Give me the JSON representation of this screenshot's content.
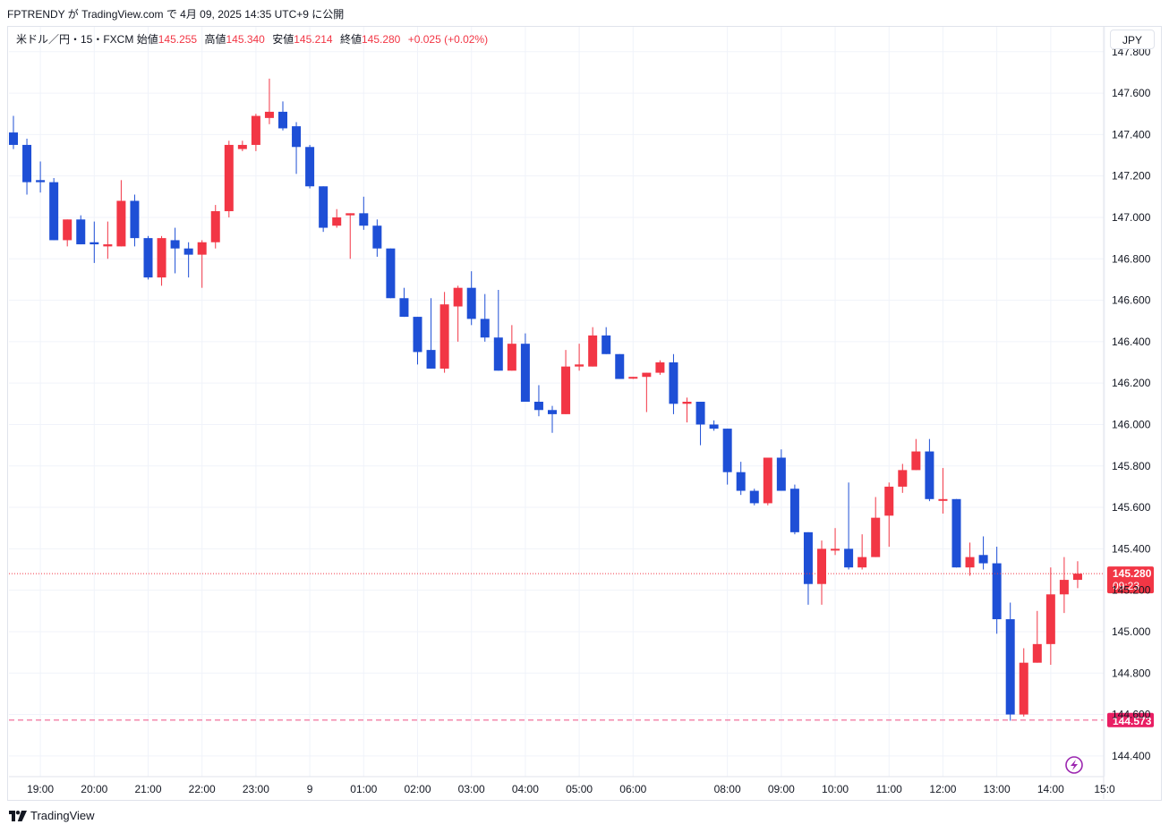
{
  "caption": "FPTRENDY が TradingView.com で 4月 09, 2025 14:35 UTC+9 に公開",
  "legend": {
    "symbol": "米ドル／円・15・FXCM",
    "open_label": "始値",
    "open": "145.255",
    "high_label": "高値",
    "high": "145.340",
    "low_label": "安値",
    "low": "145.214",
    "close_label": "終値",
    "close": "145.280",
    "change": "+0.025 (+0.02%)"
  },
  "currency_button": "JPY",
  "price_tag": {
    "price": "145.280",
    "countdown": "09:23"
  },
  "low_tag": "144.573",
  "footer_brand": "TradingView",
  "colors": {
    "up": "#f23645",
    "down": "#1e4fd6",
    "grid": "#f0f3fa",
    "axis_text": "#131722",
    "alert": "#9c27b0"
  },
  "chart_data": {
    "type": "candlestick",
    "title": "",
    "interval": "15",
    "ylim": [
      144.3,
      147.92
    ],
    "y_ticks": [
      "147.800",
      "147.600",
      "147.400",
      "147.200",
      "147.000",
      "146.800",
      "146.600",
      "146.400",
      "146.200",
      "146.000",
      "145.800",
      "145.600",
      "145.400",
      "145.200",
      "145.000",
      "144.800",
      "144.600",
      "144.400"
    ],
    "x_ticks": [
      {
        "label": "19:00",
        "i": 2
      },
      {
        "label": "20:00",
        "i": 6
      },
      {
        "label": "21:00",
        "i": 10
      },
      {
        "label": "22:00",
        "i": 14
      },
      {
        "label": "23:00",
        "i": 18
      },
      {
        "label": "9",
        "i": 22
      },
      {
        "label": "01:00",
        "i": 26
      },
      {
        "label": "02:00",
        "i": 30
      },
      {
        "label": "03:00",
        "i": 34
      },
      {
        "label": "04:00",
        "i": 38
      },
      {
        "label": "05:00",
        "i": 42
      },
      {
        "label": "06:00",
        "i": 46
      },
      {
        "label": "08:00",
        "i": 53
      },
      {
        "label": "09:00",
        "i": 57
      },
      {
        "label": "10:00",
        "i": 61
      },
      {
        "label": "11:00",
        "i": 65
      },
      {
        "label": "12:00",
        "i": 69
      },
      {
        "label": "13:00",
        "i": 73
      },
      {
        "label": "14:00",
        "i": 77
      },
      {
        "label": "15:0",
        "i": 81
      }
    ],
    "current_price": 145.28,
    "low_line": 144.573,
    "candles": [
      {
        "o": 147.41,
        "h": 147.49,
        "l": 147.33,
        "c": 147.35
      },
      {
        "o": 147.35,
        "h": 147.38,
        "l": 147.11,
        "c": 147.17
      },
      {
        "o": 147.18,
        "h": 147.27,
        "l": 147.12,
        "c": 147.17
      },
      {
        "o": 147.17,
        "h": 147.19,
        "l": 146.89,
        "c": 146.89
      },
      {
        "o": 146.89,
        "h": 146.99,
        "l": 146.86,
        "c": 146.99
      },
      {
        "o": 146.99,
        "h": 147.01,
        "l": 146.87,
        "c": 146.87
      },
      {
        "o": 146.88,
        "h": 146.98,
        "l": 146.78,
        "c": 146.87
      },
      {
        "o": 146.86,
        "h": 146.98,
        "l": 146.8,
        "c": 146.87
      },
      {
        "o": 146.86,
        "h": 147.18,
        "l": 146.86,
        "c": 147.08
      },
      {
        "o": 147.08,
        "h": 147.11,
        "l": 146.86,
        "c": 146.9
      },
      {
        "o": 146.9,
        "h": 146.91,
        "l": 146.7,
        "c": 146.71
      },
      {
        "o": 146.71,
        "h": 146.91,
        "l": 146.67,
        "c": 146.9
      },
      {
        "o": 146.89,
        "h": 146.95,
        "l": 146.73,
        "c": 146.85
      },
      {
        "o": 146.85,
        "h": 146.88,
        "l": 146.71,
        "c": 146.82
      },
      {
        "o": 146.82,
        "h": 146.89,
        "l": 146.66,
        "c": 146.88
      },
      {
        "o": 146.88,
        "h": 147.06,
        "l": 146.85,
        "c": 147.03
      },
      {
        "o": 147.03,
        "h": 147.37,
        "l": 147.0,
        "c": 147.35
      },
      {
        "o": 147.33,
        "h": 147.37,
        "l": 147.32,
        "c": 147.35
      },
      {
        "o": 147.35,
        "h": 147.5,
        "l": 147.32,
        "c": 147.49
      },
      {
        "o": 147.48,
        "h": 147.67,
        "l": 147.45,
        "c": 147.51
      },
      {
        "o": 147.51,
        "h": 147.56,
        "l": 147.42,
        "c": 147.43
      },
      {
        "o": 147.44,
        "h": 147.46,
        "l": 147.21,
        "c": 147.34
      },
      {
        "o": 147.34,
        "h": 147.35,
        "l": 147.14,
        "c": 147.15
      },
      {
        "o": 147.15,
        "h": 147.15,
        "l": 146.93,
        "c": 146.95
      },
      {
        "o": 146.96,
        "h": 147.04,
        "l": 146.95,
        "c": 147.0
      },
      {
        "o": 147.01,
        "h": 147.02,
        "l": 146.8,
        "c": 147.02
      },
      {
        "o": 147.02,
        "h": 147.1,
        "l": 146.94,
        "c": 146.96
      },
      {
        "o": 146.96,
        "h": 146.99,
        "l": 146.81,
        "c": 146.85
      },
      {
        "o": 146.85,
        "h": 146.85,
        "l": 146.61,
        "c": 146.61
      },
      {
        "o": 146.61,
        "h": 146.66,
        "l": 146.52,
        "c": 146.52
      },
      {
        "o": 146.52,
        "h": 146.52,
        "l": 146.29,
        "c": 146.35
      },
      {
        "o": 146.36,
        "h": 146.61,
        "l": 146.27,
        "c": 146.27
      },
      {
        "o": 146.27,
        "h": 146.64,
        "l": 146.25,
        "c": 146.58
      },
      {
        "o": 146.57,
        "h": 146.67,
        "l": 146.4,
        "c": 146.66
      },
      {
        "o": 146.66,
        "h": 146.74,
        "l": 146.48,
        "c": 146.51
      },
      {
        "o": 146.51,
        "h": 146.63,
        "l": 146.4,
        "c": 146.42
      },
      {
        "o": 146.42,
        "h": 146.65,
        "l": 146.26,
        "c": 146.26
      },
      {
        "o": 146.26,
        "h": 146.48,
        "l": 146.26,
        "c": 146.39
      },
      {
        "o": 146.39,
        "h": 146.44,
        "l": 146.11,
        "c": 146.11
      },
      {
        "o": 146.11,
        "h": 146.19,
        "l": 146.04,
        "c": 146.07
      },
      {
        "o": 146.07,
        "h": 146.09,
        "l": 145.96,
        "c": 146.05
      },
      {
        "o": 146.05,
        "h": 146.36,
        "l": 146.05,
        "c": 146.28
      },
      {
        "o": 146.28,
        "h": 146.39,
        "l": 146.26,
        "c": 146.29
      },
      {
        "o": 146.28,
        "h": 146.47,
        "l": 146.28,
        "c": 146.43
      },
      {
        "o": 146.43,
        "h": 146.47,
        "l": 146.34,
        "c": 146.34
      },
      {
        "o": 146.34,
        "h": 146.34,
        "l": 146.22,
        "c": 146.22
      },
      {
        "o": 146.23,
        "h": 146.23,
        "l": 146.22,
        "c": 146.23
      },
      {
        "o": 146.23,
        "h": 146.25,
        "l": 146.06,
        "c": 146.25
      },
      {
        "o": 146.25,
        "h": 146.31,
        "l": 146.24,
        "c": 146.3
      },
      {
        "o": 146.3,
        "h": 146.34,
        "l": 146.05,
        "c": 146.1
      },
      {
        "o": 146.1,
        "h": 146.13,
        "l": 146.01,
        "c": 146.11
      },
      {
        "o": 146.11,
        "h": 146.11,
        "l": 145.9,
        "c": 146.0
      },
      {
        "o": 146.0,
        "h": 146.02,
        "l": 145.97,
        "c": 145.98
      },
      {
        "o": 145.98,
        "h": 145.98,
        "l": 145.71,
        "c": 145.77
      },
      {
        "o": 145.77,
        "h": 145.82,
        "l": 145.66,
        "c": 145.68
      },
      {
        "o": 145.68,
        "h": 145.69,
        "l": 145.61,
        "c": 145.62
      },
      {
        "o": 145.62,
        "h": 145.84,
        "l": 145.61,
        "c": 145.84
      },
      {
        "o": 145.84,
        "h": 145.88,
        "l": 145.68,
        "c": 145.68
      },
      {
        "o": 145.69,
        "h": 145.71,
        "l": 145.47,
        "c": 145.48
      },
      {
        "o": 145.48,
        "h": 145.48,
        "l": 145.13,
        "c": 145.23
      },
      {
        "o": 145.23,
        "h": 145.44,
        "l": 145.13,
        "c": 145.4
      },
      {
        "o": 145.4,
        "h": 145.5,
        "l": 145.37,
        "c": 145.4
      },
      {
        "o": 145.4,
        "h": 145.72,
        "l": 145.3,
        "c": 145.31
      },
      {
        "o": 145.31,
        "h": 145.47,
        "l": 145.3,
        "c": 145.36
      },
      {
        "o": 145.36,
        "h": 145.65,
        "l": 145.36,
        "c": 145.55
      },
      {
        "o": 145.56,
        "h": 145.72,
        "l": 145.41,
        "c": 145.7
      },
      {
        "o": 145.7,
        "h": 145.81,
        "l": 145.67,
        "c": 145.78
      },
      {
        "o": 145.78,
        "h": 145.93,
        "l": 145.78,
        "c": 145.87
      },
      {
        "o": 145.87,
        "h": 145.93,
        "l": 145.63,
        "c": 145.64
      },
      {
        "o": 145.64,
        "h": 145.79,
        "l": 145.57,
        "c": 145.64
      },
      {
        "o": 145.64,
        "h": 145.64,
        "l": 145.31,
        "c": 145.31
      },
      {
        "o": 145.31,
        "h": 145.43,
        "l": 145.27,
        "c": 145.36
      },
      {
        "o": 145.37,
        "h": 145.46,
        "l": 145.3,
        "c": 145.33
      },
      {
        "o": 145.33,
        "h": 145.41,
        "l": 144.99,
        "c": 145.06
      },
      {
        "o": 145.06,
        "h": 145.14,
        "l": 144.57,
        "c": 144.6
      },
      {
        "o": 144.6,
        "h": 144.92,
        "l": 144.59,
        "c": 144.85
      },
      {
        "o": 144.85,
        "h": 145.1,
        "l": 144.85,
        "c": 144.94
      },
      {
        "o": 144.94,
        "h": 145.31,
        "l": 144.84,
        "c": 145.18
      },
      {
        "o": 145.18,
        "h": 145.36,
        "l": 145.09,
        "c": 145.25
      },
      {
        "o": 145.25,
        "h": 145.34,
        "l": 145.21,
        "c": 145.28
      }
    ]
  }
}
